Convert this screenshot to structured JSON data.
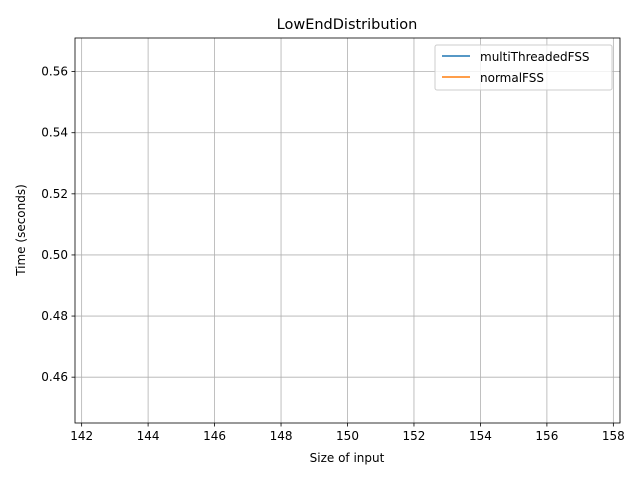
{
  "chart_data": {
    "type": "line",
    "title": "LowEndDistribution",
    "xlabel": "Size of input",
    "ylabel": "Time (seconds)",
    "xlim": [
      141.8,
      158.2
    ],
    "ylim": [
      0.445,
      0.571
    ],
    "xticks": [
      142,
      144,
      146,
      148,
      150,
      152,
      154,
      156,
      158
    ],
    "yticks": [
      0.46,
      0.48,
      0.5,
      0.52,
      0.54,
      0.56
    ],
    "grid": true,
    "legend_position": "top-right",
    "series": [
      {
        "name": "multiThreadedFSS",
        "color": "#1f77b4",
        "x": [],
        "y": []
      },
      {
        "name": "normalFSS",
        "color": "#ff7f0e",
        "x": [],
        "y": []
      }
    ]
  }
}
